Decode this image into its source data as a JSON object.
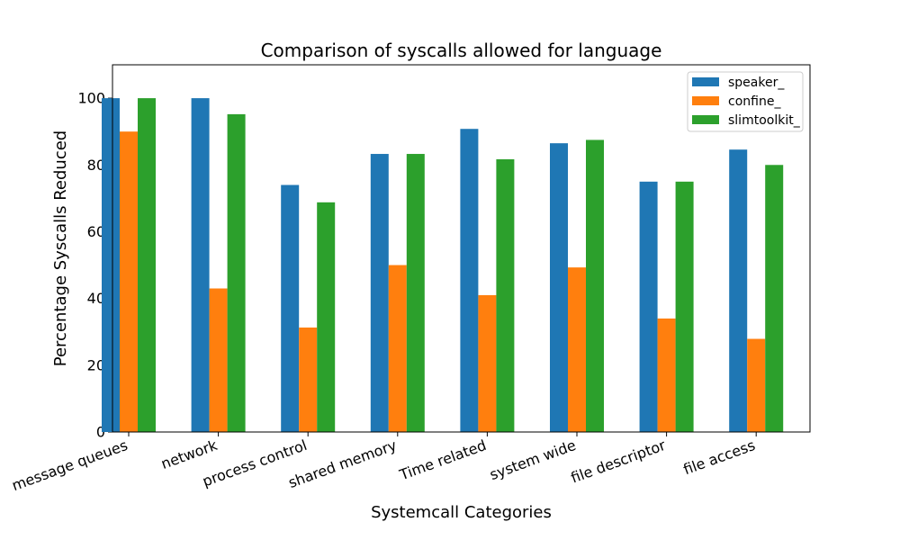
{
  "chart_data": {
    "type": "bar",
    "title": "Comparison of syscalls allowed for language",
    "xlabel": "Systemcall Categories",
    "ylabel": "Percentage Syscalls Reduced",
    "categories": [
      "message queues",
      "network",
      "process control",
      "shared memory",
      "Time related",
      "system wide",
      "file descriptor",
      "file access"
    ],
    "series": [
      {
        "name": "speaker_",
        "color": "#1f77b4",
        "values": [
          100,
          100,
          74,
          83.3,
          90.8,
          86.5,
          75,
          84.6
        ]
      },
      {
        "name": "confine_",
        "color": "#ff7f0e",
        "values": [
          90,
          43,
          31.3,
          50,
          41,
          49.3,
          34,
          27.9
        ]
      },
      {
        "name": "slimtoolkit_",
        "color": "#2ca02c",
        "values": [
          100,
          95.2,
          68.8,
          83.3,
          81.7,
          87.5,
          75,
          80
        ]
      }
    ],
    "ylim": [
      0,
      110
    ],
    "yticks": [
      0,
      20,
      40,
      60,
      80,
      100
    ],
    "grid": false,
    "legend_position": "top-right"
  }
}
